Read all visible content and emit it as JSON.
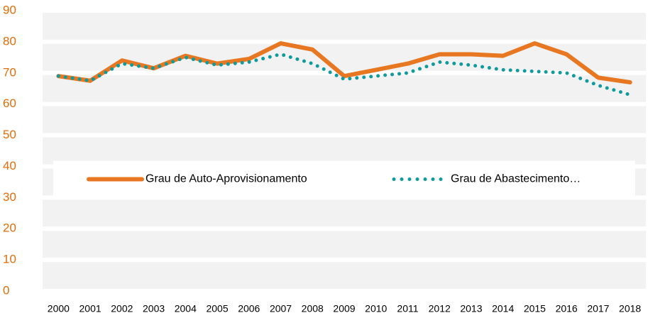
{
  "chart_data": {
    "type": "line",
    "categories": [
      "2000",
      "2001",
      "2002",
      "2003",
      "2004",
      "2005",
      "2006",
      "2007",
      "2008",
      "2009",
      "2010",
      "2011",
      "2012",
      "2013",
      "2014",
      "2015",
      "2016",
      "2017",
      "2018"
    ],
    "series": [
      {
        "name": "Grau de Auto-Aprovisionamento",
        "color": "#e87722",
        "style": "solid",
        "values": [
          69,
          67.5,
          74,
          71.5,
          75.5,
          73,
          74.5,
          79.5,
          77.5,
          69,
          71,
          73,
          76,
          76,
          75.5,
          79.5,
          76,
          68.5,
          67
        ]
      },
      {
        "name": "Grau de Abastecimento…",
        "color": "#0f9b9b",
        "style": "dotted",
        "values": [
          69,
          67.5,
          73,
          71.5,
          75,
          72.5,
          73.5,
          76,
          73,
          68,
          69,
          70,
          73.5,
          72.5,
          71,
          70.5,
          70,
          66,
          63
        ]
      }
    ],
    "ylim": [
      0,
      90
    ],
    "yticks": [
      0,
      10,
      20,
      30,
      40,
      50,
      60,
      70,
      80,
      90
    ],
    "grid": true,
    "legend": "center"
  }
}
